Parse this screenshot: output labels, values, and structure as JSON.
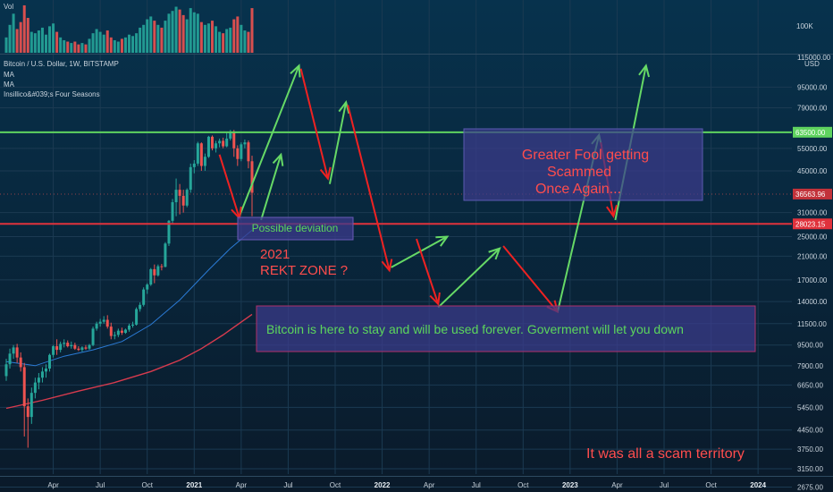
{
  "header": {
    "vol_label": "Vol",
    "vol_scale_label": "100K",
    "symbol_line": "Bitcoin / U.S. Dollar, 1W, BITSTAMP",
    "indicators": [
      "MA",
      "MA",
      "Insillico&#039;s Four Seasons"
    ]
  },
  "colors": {
    "background_top": "#07304a",
    "background_bottom": "#0a1826",
    "up_candle": "#26a69a",
    "down_candle": "#ef5350",
    "support_line": "#e0323c",
    "resistance_line": "#5fd35f",
    "ma_fast": "#2b7bd6",
    "ma_slow": "#d83b4e",
    "green_arrow": "#66d966",
    "red_arrow": "#ee2222",
    "annotation_box": "#3b3b8c",
    "annotation_text_red": "#ff4d4d",
    "annotation_text_green": "#5cd65c"
  },
  "chart_data": {
    "type": "candlestick",
    "price_axis": {
      "scale": "log",
      "currency_label": "USD",
      "range": [
        2600,
        125000
      ],
      "ticks": [
        95000,
        79000,
        55000,
        45000,
        31000,
        25000,
        21000,
        17000,
        14000,
        11500,
        9500,
        7900,
        6650,
        5450,
        4450,
        3750,
        3150,
        2675
      ],
      "top_partial_label": "115000.00",
      "current_price_label": "36563.96"
    },
    "time_axis": {
      "labels": [
        "Apr",
        "Jul",
        "Oct",
        "2021",
        "Apr",
        "Jul",
        "Oct",
        "2022",
        "Apr",
        "Jul",
        "Oct",
        "2023",
        "Apr",
        "Jul",
        "Oct",
        "2024"
      ],
      "label_weeks": [
        13,
        26,
        39,
        52,
        65,
        78,
        91,
        104,
        117,
        130,
        143,
        156,
        169,
        182,
        195,
        208
      ]
    },
    "horizontal_lines": [
      {
        "name": "resistance",
        "value": 63500,
        "label": "63500.00"
      },
      {
        "name": "support",
        "value": 28023.15,
        "label": "28023.15"
      }
    ],
    "candles": [
      {
        "w": 0,
        "o": 7200,
        "h": 8400,
        "l": 6900,
        "c": 8000
      },
      {
        "w": 1,
        "o": 8000,
        "h": 9200,
        "l": 7700,
        "c": 8800
      },
      {
        "w": 2,
        "o": 8800,
        "h": 9500,
        "l": 8400,
        "c": 9300
      },
      {
        "w": 3,
        "o": 9300,
        "h": 9600,
        "l": 8100,
        "c": 8500
      },
      {
        "w": 4,
        "o": 8500,
        "h": 8900,
        "l": 7500,
        "c": 7800
      },
      {
        "w": 5,
        "o": 7800,
        "h": 8100,
        "l": 4200,
        "c": 5500
      },
      {
        "w": 6,
        "o": 5500,
        "h": 5900,
        "l": 3800,
        "c": 5000
      },
      {
        "w": 7,
        "o": 5000,
        "h": 6500,
        "l": 4700,
        "c": 6200
      },
      {
        "w": 8,
        "o": 6200,
        "h": 7100,
        "l": 5900,
        "c": 6800
      },
      {
        "w": 9,
        "o": 6800,
        "h": 7400,
        "l": 6400,
        "c": 7100
      },
      {
        "w": 10,
        "o": 7100,
        "h": 7800,
        "l": 6800,
        "c": 7500
      },
      {
        "w": 11,
        "o": 7500,
        "h": 8000,
        "l": 7100,
        "c": 7700
      },
      {
        "w": 12,
        "o": 7700,
        "h": 8800,
        "l": 7500,
        "c": 8700
      },
      {
        "w": 13,
        "o": 8700,
        "h": 9500,
        "l": 8500,
        "c": 9400
      },
      {
        "w": 14,
        "o": 9400,
        "h": 10000,
        "l": 8700,
        "c": 9100
      },
      {
        "w": 15,
        "o": 9100,
        "h": 9800,
        "l": 8900,
        "c": 9600
      },
      {
        "w": 16,
        "o": 9600,
        "h": 10000,
        "l": 9300,
        "c": 9700
      },
      {
        "w": 17,
        "o": 9700,
        "h": 9900,
        "l": 9300,
        "c": 9400
      },
      {
        "w": 18,
        "o": 9400,
        "h": 9800,
        "l": 9200,
        "c": 9500
      },
      {
        "w": 19,
        "o": 9500,
        "h": 9700,
        "l": 9100,
        "c": 9200
      },
      {
        "w": 20,
        "o": 9200,
        "h": 9400,
        "l": 9000,
        "c": 9100
      },
      {
        "w": 21,
        "o": 9100,
        "h": 9400,
        "l": 8950,
        "c": 9300
      },
      {
        "w": 22,
        "o": 9300,
        "h": 9500,
        "l": 9100,
        "c": 9200
      },
      {
        "w": 23,
        "o": 9200,
        "h": 9600,
        "l": 9100,
        "c": 9500
      },
      {
        "w": 24,
        "o": 9500,
        "h": 11200,
        "l": 9400,
        "c": 11000
      },
      {
        "w": 25,
        "o": 11000,
        "h": 11700,
        "l": 10800,
        "c": 11500
      },
      {
        "w": 26,
        "o": 11500,
        "h": 12000,
        "l": 11200,
        "c": 11700
      },
      {
        "w": 27,
        "o": 11700,
        "h": 12300,
        "l": 11500,
        "c": 11900
      },
      {
        "w": 28,
        "o": 11900,
        "h": 12400,
        "l": 11000,
        "c": 11200
      },
      {
        "w": 29,
        "o": 11200,
        "h": 11600,
        "l": 10000,
        "c": 10300
      },
      {
        "w": 30,
        "o": 10300,
        "h": 10700,
        "l": 10000,
        "c": 10400
      },
      {
        "w": 31,
        "o": 10400,
        "h": 11000,
        "l": 10200,
        "c": 10800
      },
      {
        "w": 32,
        "o": 10800,
        "h": 11100,
        "l": 10400,
        "c": 10600
      },
      {
        "w": 33,
        "o": 10600,
        "h": 11000,
        "l": 10500,
        "c": 10900
      },
      {
        "w": 34,
        "o": 10900,
        "h": 11500,
        "l": 10700,
        "c": 11300
      },
      {
        "w": 35,
        "o": 11300,
        "h": 11700,
        "l": 11100,
        "c": 11400
      },
      {
        "w": 36,
        "o": 11400,
        "h": 13300,
        "l": 11300,
        "c": 13100
      },
      {
        "w": 37,
        "o": 13100,
        "h": 13900,
        "l": 12800,
        "c": 13600
      },
      {
        "w": 38,
        "o": 13600,
        "h": 15900,
        "l": 13400,
        "c": 15600
      },
      {
        "w": 39,
        "o": 15600,
        "h": 16500,
        "l": 15000,
        "c": 16300
      },
      {
        "w": 40,
        "o": 16300,
        "h": 18900,
        "l": 16100,
        "c": 18700
      },
      {
        "w": 41,
        "o": 18700,
        "h": 19500,
        "l": 16500,
        "c": 17700
      },
      {
        "w": 42,
        "o": 17700,
        "h": 19500,
        "l": 17500,
        "c": 19200
      },
      {
        "w": 43,
        "o": 19200,
        "h": 19600,
        "l": 18500,
        "c": 19100
      },
      {
        "w": 44,
        "o": 19100,
        "h": 23800,
        "l": 19000,
        "c": 23500
      },
      {
        "w": 45,
        "o": 23500,
        "h": 29000,
        "l": 23000,
        "c": 28800
      },
      {
        "w": 46,
        "o": 28800,
        "h": 35000,
        "l": 28000,
        "c": 34000
      },
      {
        "w": 47,
        "o": 34000,
        "h": 42000,
        "l": 30000,
        "c": 38000
      },
      {
        "w": 48,
        "o": 38000,
        "h": 40000,
        "l": 30500,
        "c": 36000
      },
      {
        "w": 49,
        "o": 36000,
        "h": 38000,
        "l": 31000,
        "c": 33000
      },
      {
        "w": 50,
        "o": 33000,
        "h": 38500,
        "l": 32500,
        "c": 38000
      },
      {
        "w": 51,
        "o": 38000,
        "h": 48000,
        "l": 37000,
        "c": 46500
      },
      {
        "w": 52,
        "o": 46500,
        "h": 49500,
        "l": 44000,
        "c": 48000
      },
      {
        "w": 53,
        "o": 48000,
        "h": 58300,
        "l": 47000,
        "c": 57500
      },
      {
        "w": 54,
        "o": 57500,
        "h": 58000,
        "l": 45000,
        "c": 47000
      },
      {
        "w": 55,
        "o": 47000,
        "h": 52500,
        "l": 45000,
        "c": 51000
      },
      {
        "w": 56,
        "o": 51000,
        "h": 61500,
        "l": 50500,
        "c": 61000
      },
      {
        "w": 57,
        "o": 61000,
        "h": 61700,
        "l": 54000,
        "c": 55000
      },
      {
        "w": 58,
        "o": 55000,
        "h": 58800,
        "l": 53000,
        "c": 57500
      },
      {
        "w": 59,
        "o": 57500,
        "h": 60000,
        "l": 55500,
        "c": 58800
      },
      {
        "w": 60,
        "o": 58800,
        "h": 60500,
        "l": 55000,
        "c": 56000
      },
      {
        "w": 61,
        "o": 56000,
        "h": 63500,
        "l": 55500,
        "c": 60000
      },
      {
        "w": 62,
        "o": 60000,
        "h": 64800,
        "l": 59000,
        "c": 63500
      },
      {
        "w": 63,
        "o": 63500,
        "h": 64800,
        "l": 51000,
        "c": 55000
      },
      {
        "w": 64,
        "o": 55000,
        "h": 56500,
        "l": 47000,
        "c": 50000
      },
      {
        "w": 65,
        "o": 50000,
        "h": 58000,
        "l": 49000,
        "c": 57000
      },
      {
        "w": 66,
        "o": 57000,
        "h": 59500,
        "l": 55000,
        "c": 58000
      },
      {
        "w": 67,
        "o": 58000,
        "h": 59000,
        "l": 46000,
        "c": 49000
      },
      {
        "w": 68,
        "o": 49000,
        "h": 51500,
        "l": 30000,
        "c": 37000
      }
    ],
    "volume": [
      22,
      40,
      56,
      34,
      44,
      68,
      50,
      30,
      28,
      32,
      36,
      26,
      38,
      42,
      30,
      22,
      18,
      16,
      14,
      16,
      12,
      14,
      12,
      20,
      28,
      34,
      30,
      26,
      32,
      22,
      18,
      16,
      20,
      22,
      26,
      24,
      28,
      36,
      40,
      48,
      52,
      46,
      40,
      36,
      46,
      56,
      60,
      66,
      62,
      54,
      48,
      64,
      58,
      56,
      44,
      40,
      42,
      46,
      38,
      30,
      28,
      34,
      36,
      48,
      52,
      40,
      32,
      30,
      64
    ],
    "ma_fast": [
      {
        "w": 0,
        "v": 8200
      },
      {
        "w": 8,
        "v": 7900
      },
      {
        "w": 16,
        "v": 8600
      },
      {
        "w": 24,
        "v": 9100
      },
      {
        "w": 32,
        "v": 9800
      },
      {
        "w": 40,
        "v": 11400
      },
      {
        "w": 48,
        "v": 14200
      },
      {
        "w": 56,
        "v": 18600
      },
      {
        "w": 62,
        "v": 22500
      },
      {
        "w": 68,
        "v": 26500
      }
    ],
    "ma_slow": [
      {
        "w": 0,
        "v": 5400
      },
      {
        "w": 10,
        "v": 5800
      },
      {
        "w": 20,
        "v": 6300
      },
      {
        "w": 30,
        "v": 6800
      },
      {
        "w": 40,
        "v": 7500
      },
      {
        "w": 48,
        "v": 8300
      },
      {
        "w": 54,
        "v": 9200
      },
      {
        "w": 60,
        "v": 10400
      },
      {
        "w": 68,
        "v": 12500
      }
    ],
    "arrow_path_green": [
      [
        [
          64.5,
          30000
        ],
        [
          81,
          115000
        ]
      ],
      [
        [
          70.5,
          29000
        ],
        [
          76,
          52000
        ]
      ],
      [
        [
          89.5,
          40000
        ],
        [
          94,
          83000
        ]
      ],
      [
        [
          106.5,
          19000
        ],
        [
          122,
          25000
        ]
      ],
      [
        [
          119.5,
          13300
        ],
        [
          136.5,
          22500
        ]
      ],
      [
        [
          152.5,
          12700
        ],
        [
          164,
          62000
        ]
      ],
      [
        [
          168.5,
          29000
        ],
        [
          177,
          115000
        ]
      ]
    ],
    "arrow_path_red": [
      [
        [
          59,
          52000
        ],
        [
          64.5,
          29500
        ]
      ],
      [
        [
          81.5,
          112000
        ],
        [
          89,
          42000
        ]
      ],
      [
        [
          94.5,
          81000
        ],
        [
          106,
          18500
        ]
      ],
      [
        [
          113.5,
          24500
        ],
        [
          119.5,
          13700
        ]
      ],
      [
        [
          137.5,
          23000
        ],
        [
          152.5,
          12800
        ]
      ],
      [
        [
          164.5,
          58000
        ],
        [
          168,
          30000
        ]
      ]
    ],
    "annotations": [
      {
        "name": "greater-fool",
        "lines": [
          "Greater Fool getting",
          "Scammed",
          "Once Again..."
        ]
      },
      {
        "name": "possible-deviation",
        "text": "Possible deviation"
      },
      {
        "name": "rekt-zone",
        "lines": [
          "2021",
          "REKT ZONE ?"
        ]
      },
      {
        "name": "here-to-stay",
        "text": "Bitcoin is here to stay and will be used forever. Goverment will let you down"
      },
      {
        "name": "scam-territory",
        "text": "It was all a scam territory"
      }
    ]
  }
}
